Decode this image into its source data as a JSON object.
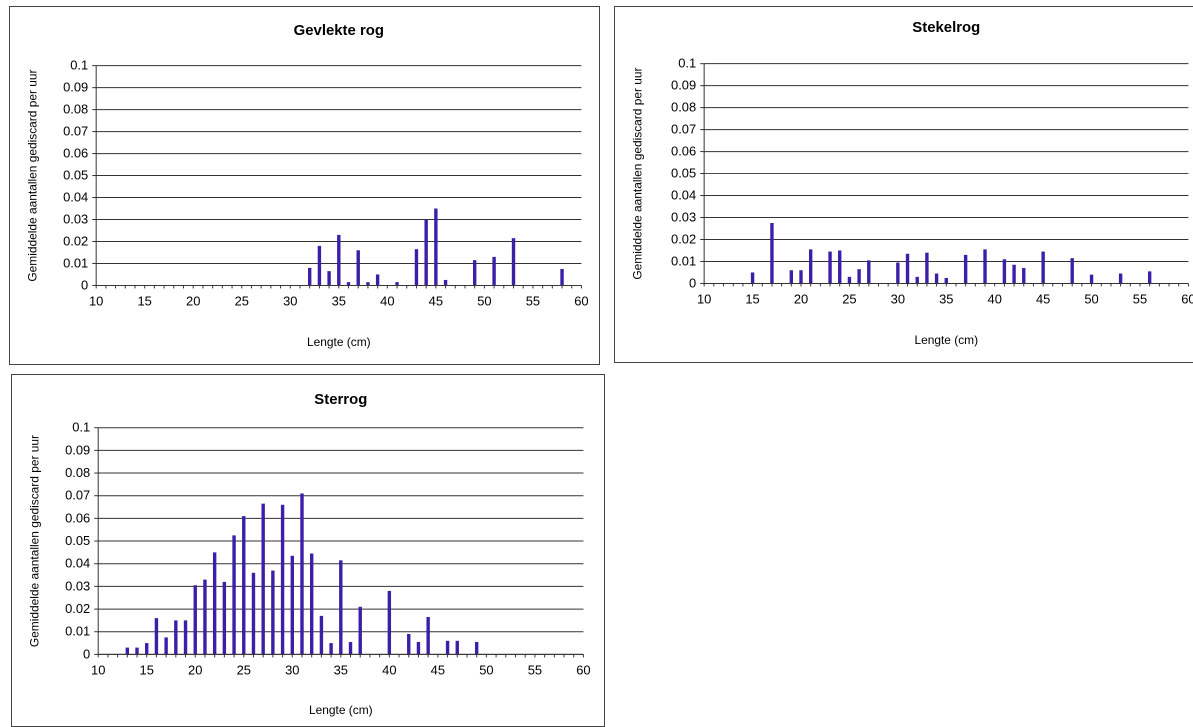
{
  "chart_data": [
    {
      "type": "bar",
      "title": "Gevlekte rog",
      "xlabel": "Lengte (cm)",
      "ylabel": "Gemiddelde aantallen gediscard per uur",
      "xlim": [
        10,
        60
      ],
      "ylim": [
        0,
        0.1
      ],
      "grid": true,
      "bar_color": "#3b1fa8",
      "x_ticks": [
        "10",
        "15",
        "20",
        "25",
        "30",
        "35",
        "40",
        "45",
        "50",
        "55",
        "60"
      ],
      "y_ticks": [
        "0",
        "0.01",
        "0.02",
        "0.03",
        "0.04",
        "0.05",
        "0.06",
        "0.07",
        "0.08",
        "0.09",
        "0.1"
      ],
      "x": [
        32,
        33,
        34,
        35,
        36,
        37,
        38,
        39,
        41,
        43,
        44,
        45,
        46,
        49,
        51,
        53,
        58
      ],
      "values": [
        0.008,
        0.018,
        0.0065,
        0.023,
        0.0015,
        0.016,
        0.0015,
        0.005,
        0.0015,
        0.0165,
        0.03,
        0.035,
        0.0025,
        0.0115,
        0.013,
        0.0215,
        0.0075
      ]
    },
    {
      "type": "bar",
      "title": "Stekelrog",
      "xlabel": "Lengte (cm)",
      "ylabel": "Gemiddelde aantallen gediscard per uur",
      "xlim": [
        10,
        60
      ],
      "ylim": [
        0,
        0.1
      ],
      "grid": true,
      "bar_color": "#3b1fa8",
      "x_ticks": [
        "10",
        "15",
        "20",
        "25",
        "30",
        "35",
        "40",
        "45",
        "50",
        "55",
        "60"
      ],
      "y_ticks": [
        "0",
        "0.01",
        "0.02",
        "0.03",
        "0.04",
        "0.05",
        "0.06",
        "0.07",
        "0.08",
        "0.09",
        "0.1"
      ],
      "x": [
        15,
        17,
        19,
        20,
        21,
        23,
        24,
        25,
        26,
        27,
        30,
        31,
        32,
        33,
        34,
        35,
        37,
        39,
        41,
        42,
        43,
        45,
        48,
        50,
        53,
        56
      ],
      "values": [
        0.005,
        0.0275,
        0.006,
        0.006,
        0.0155,
        0.0145,
        0.015,
        0.003,
        0.0065,
        0.0105,
        0.0095,
        0.0135,
        0.003,
        0.014,
        0.0045,
        0.0025,
        0.013,
        0.0155,
        0.011,
        0.0085,
        0.007,
        0.0145,
        0.0115,
        0.004,
        0.0045,
        0.0055
      ]
    },
    {
      "type": "bar",
      "title": "Sterrog",
      "xlabel": "Lengte (cm)",
      "ylabel": "Gemiddelde aantallen gediscard per uur",
      "xlim": [
        10,
        60
      ],
      "ylim": [
        0,
        0.1
      ],
      "grid": true,
      "bar_color": "#3b1fa8",
      "x_ticks": [
        "10",
        "15",
        "20",
        "25",
        "30",
        "35",
        "40",
        "45",
        "50",
        "55",
        "60"
      ],
      "y_ticks": [
        "0",
        "0.01",
        "0.02",
        "0.03",
        "0.04",
        "0.05",
        "0.06",
        "0.07",
        "0.08",
        "0.09",
        "0.1"
      ],
      "x": [
        13,
        14,
        15,
        16,
        17,
        18,
        19,
        20,
        21,
        22,
        23,
        24,
        25,
        26,
        27,
        28,
        29,
        30,
        31,
        32,
        33,
        34,
        35,
        36,
        37,
        40,
        42,
        43,
        44,
        46,
        47,
        49
      ],
      "values": [
        0.003,
        0.003,
        0.005,
        0.016,
        0.0075,
        0.015,
        0.015,
        0.0305,
        0.033,
        0.045,
        0.032,
        0.0525,
        0.061,
        0.036,
        0.0665,
        0.037,
        0.066,
        0.0435,
        0.071,
        0.0445,
        0.017,
        0.005,
        0.0415,
        0.0055,
        0.021,
        0.028,
        0.009,
        0.0055,
        0.0165,
        0.006,
        0.006,
        0.0055
      ]
    }
  ]
}
